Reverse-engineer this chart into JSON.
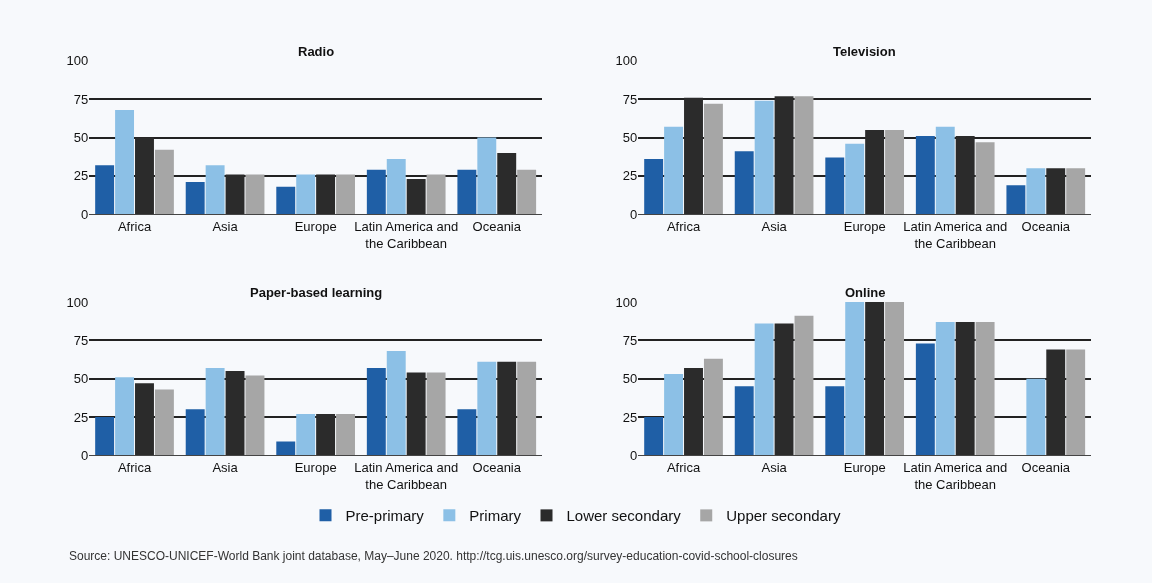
{
  "chart_data": [
    {
      "type": "bar",
      "title": "Radio",
      "categories": [
        "Africa",
        "Asia",
        "Europe",
        "Latin America and the Caribbean",
        "Oceania"
      ],
      "ylim": [
        0,
        100
      ],
      "yticks": [
        0,
        25,
        50,
        75,
        100
      ],
      "grid": "y",
      "legend": "bottom",
      "series": [
        {
          "name": "Pre-primary",
          "color": "#1f5fa6",
          "values": [
            32,
            21,
            18,
            29,
            29
          ]
        },
        {
          "name": "Primary",
          "color": "#8cc0e6",
          "values": [
            68,
            32,
            26,
            36,
            50
          ]
        },
        {
          "name": "Lower secondary",
          "color": "#2b2b2b",
          "values": [
            50,
            26,
            26,
            23,
            40
          ]
        },
        {
          "name": "Upper secondary",
          "color": "#a6a6a6",
          "values": [
            42,
            26,
            26,
            26,
            29
          ]
        }
      ]
    },
    {
      "type": "bar",
      "title": "Television",
      "categories": [
        "Africa",
        "Asia",
        "Europe",
        "Latin America and the Caribbean",
        "Oceania"
      ],
      "ylim": [
        0,
        100
      ],
      "yticks": [
        0,
        25,
        50,
        75,
        100
      ],
      "grid": "y",
      "legend": "bottom",
      "series": [
        {
          "name": "Pre-primary",
          "color": "#1f5fa6",
          "values": [
            36,
            41,
            37,
            51,
            19
          ]
        },
        {
          "name": "Primary",
          "color": "#8cc0e6",
          "values": [
            57,
            74,
            46,
            57,
            30
          ]
        },
        {
          "name": "Lower secondary",
          "color": "#2b2b2b",
          "values": [
            76,
            77,
            55,
            51,
            30
          ]
        },
        {
          "name": "Upper secondary",
          "color": "#a6a6a6",
          "values": [
            72,
            77,
            55,
            47,
            30
          ]
        }
      ]
    },
    {
      "type": "bar",
      "title": "Paper-based learning",
      "categories": [
        "Africa",
        "Asia",
        "Europe",
        "Latin America and the Caribbean",
        "Oceania"
      ],
      "ylim": [
        0,
        100
      ],
      "yticks": [
        0,
        25,
        50,
        75,
        100
      ],
      "grid": "y",
      "legend": "bottom",
      "series": [
        {
          "name": "Pre-primary",
          "color": "#1f5fa6",
          "values": [
            25,
            30,
            9,
            57,
            30
          ]
        },
        {
          "name": "Primary",
          "color": "#8cc0e6",
          "values": [
            51,
            57,
            27,
            68,
            61
          ]
        },
        {
          "name": "Lower secondary",
          "color": "#2b2b2b",
          "values": [
            47,
            55,
            27,
            54,
            61
          ]
        },
        {
          "name": "Upper secondary",
          "color": "#a6a6a6",
          "values": [
            43,
            52,
            27,
            54,
            61
          ]
        }
      ]
    },
    {
      "type": "bar",
      "title": "Online",
      "categories": [
        "Africa",
        "Asia",
        "Europe",
        "Latin America and the Caribbean",
        "Oceania"
      ],
      "ylim": [
        0,
        100
      ],
      "yticks": [
        0,
        25,
        50,
        75,
        100
      ],
      "grid": "y",
      "legend": "bottom",
      "annotations": [
        "Source: UNESCO-UNICEF-World Bank joint database, May–June 2020. http://tcg.uis.unesco.org/survey-education-covid-school-closures"
      ],
      "series": [
        {
          "name": "Pre-primary",
          "color": "#1f5fa6",
          "values": [
            25,
            45,
            45,
            73,
            null
          ]
        },
        {
          "name": "Primary",
          "color": "#8cc0e6",
          "values": [
            53,
            86,
            100,
            87,
            50
          ]
        },
        {
          "name": "Lower secondary",
          "color": "#2b2b2b",
          "values": [
            57,
            86,
            100,
            87,
            69
          ]
        },
        {
          "name": "Upper secondary",
          "color": "#a6a6a6",
          "values": [
            63,
            91,
            100,
            87,
            69
          ]
        }
      ]
    }
  ]
}
